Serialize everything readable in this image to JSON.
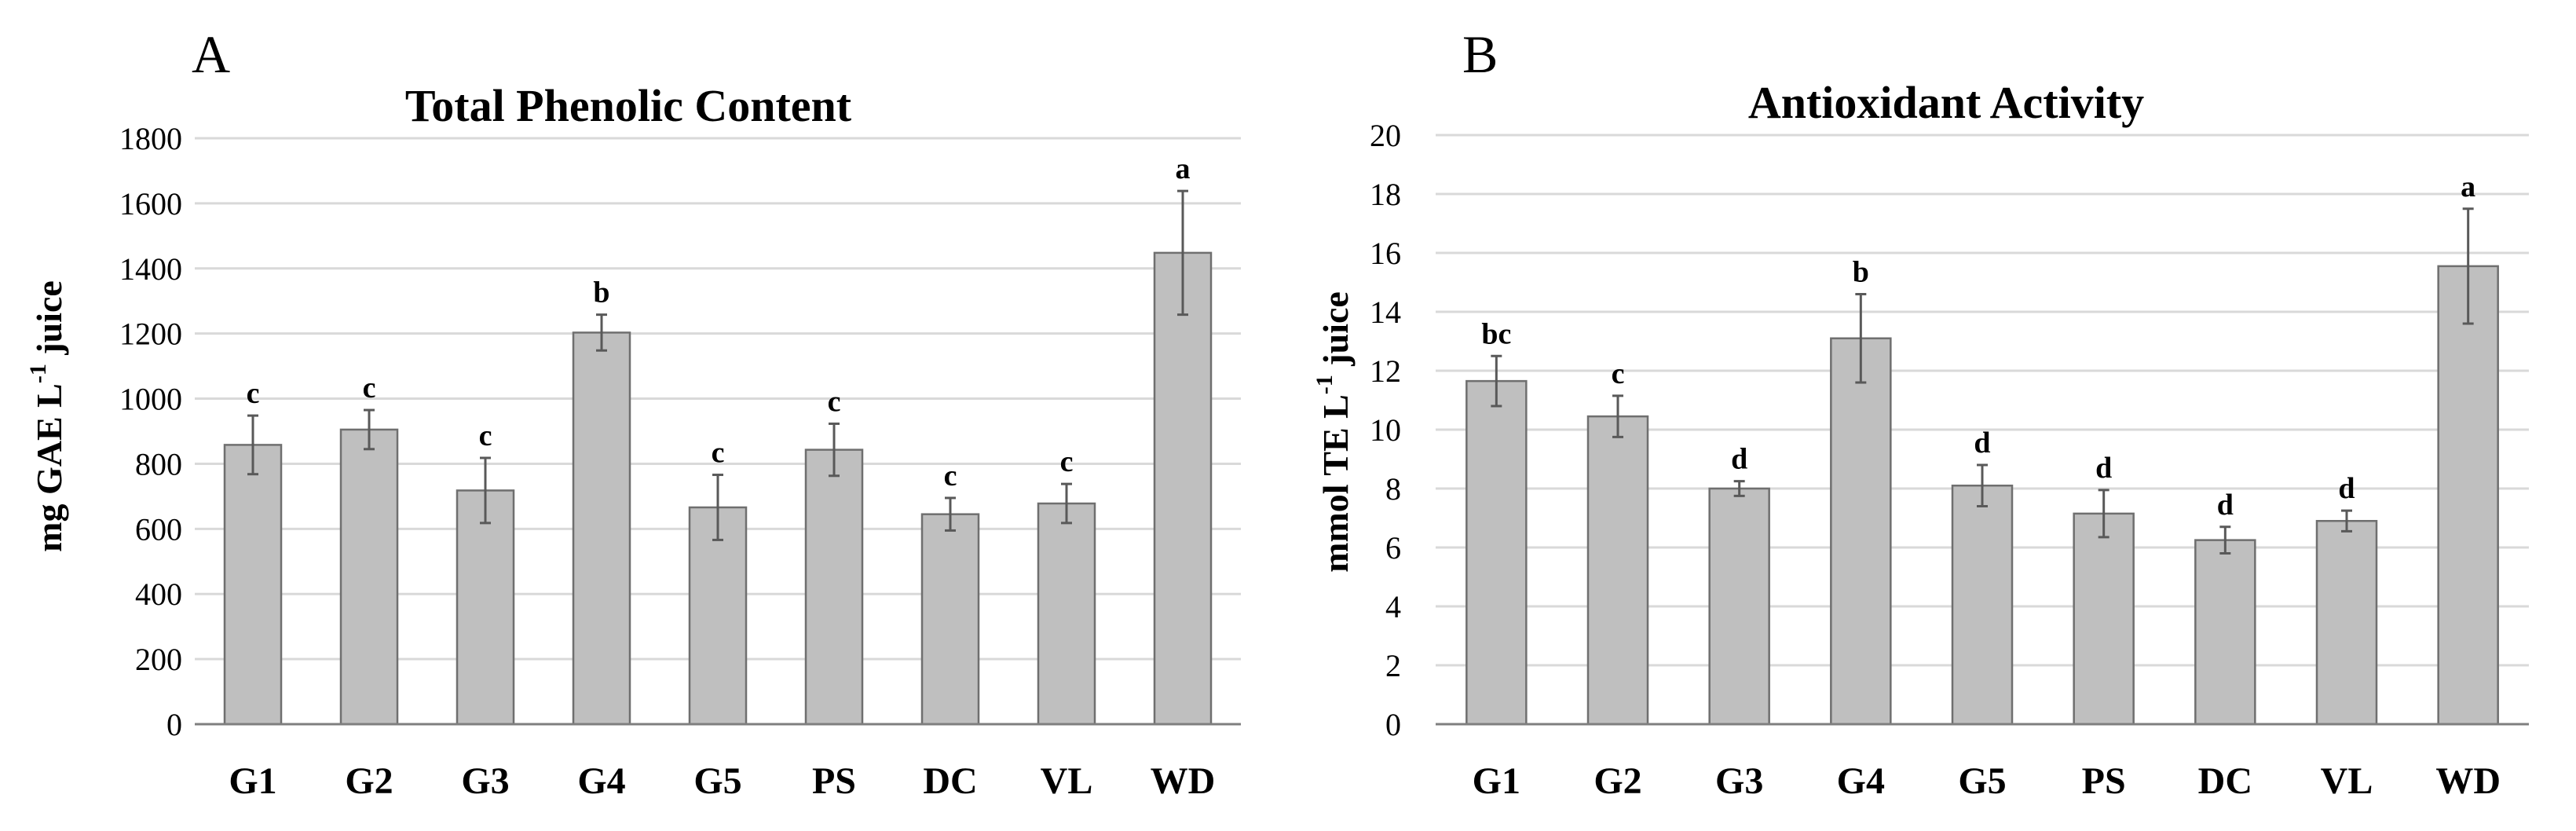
{
  "chart_data": [
    {
      "type": "bar",
      "panel_label": "A",
      "title": "Total Phenolic Content",
      "ylabel": {
        "pre": "mg GAE L",
        "sup": "-1",
        "post": " juice"
      },
      "xlabel": "",
      "ylim": [
        0,
        1800
      ],
      "yticks": [
        0,
        200,
        400,
        600,
        800,
        1000,
        1200,
        1400,
        1600,
        1800
      ],
      "ytick_labels": [
        "0",
        "200",
        "400",
        "600",
        "800",
        "1000",
        "1200",
        "1400",
        "1600",
        "1800"
      ],
      "grid": true,
      "bar_color": "#bfbfbf",
      "categories": [
        "G1",
        "G2",
        "G3",
        "G4",
        "G5",
        "PS",
        "DC",
        "VL",
        "WD"
      ],
      "values": [
        858,
        905,
        718,
        1203,
        666,
        843,
        645,
        678,
        1448
      ],
      "errors": [
        90,
        60,
        100,
        55,
        100,
        80,
        50,
        60,
        190
      ],
      "significance": [
        "c",
        "c",
        "c",
        "b",
        "c",
        "c",
        "c",
        "c",
        "a"
      ]
    },
    {
      "type": "bar",
      "panel_label": "B",
      "title": "Antioxidant Activity",
      "ylabel": {
        "pre": "mmol TE L",
        "sup": "-1",
        "post": " juice"
      },
      "xlabel": "",
      "ylim": [
        0,
        20
      ],
      "yticks": [
        0,
        2,
        4,
        6,
        8,
        10,
        12,
        14,
        16,
        18,
        20
      ],
      "ytick_labels": [
        "0",
        "2",
        "4",
        "6",
        "8",
        "10",
        "12",
        "14",
        "16",
        "18",
        "20"
      ],
      "grid": true,
      "bar_color": "#bfbfbf",
      "categories": [
        "G1",
        "G2",
        "G3",
        "G4",
        "G5",
        "PS",
        "DC",
        "VL",
        "WD"
      ],
      "values": [
        11.65,
        10.45,
        8.0,
        13.1,
        8.1,
        7.15,
        6.25,
        6.9,
        15.55
      ],
      "errors": [
        0.85,
        0.7,
        0.25,
        1.5,
        0.7,
        0.8,
        0.45,
        0.35,
        1.95
      ],
      "significance": [
        "bc",
        "c",
        "d",
        "b",
        "d",
        "d",
        "d",
        "d",
        "a"
      ]
    }
  ]
}
